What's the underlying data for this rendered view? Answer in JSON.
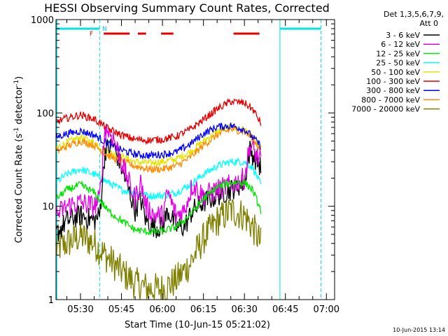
{
  "chart_data": {
    "type": "line",
    "title": "HESSI Observing Summary Count Rates, Corrected",
    "xlabel": "Start Time (10-Jun-15 05:21:02)",
    "ylabel_main": "Corrected Count Rate (s",
    "ylabel_sup": "-1",
    "ylabel_mid": " detector",
    "ylabel_sup2": "-1",
    "ylabel_end": ")",
    "yscale": "log",
    "xlim": [
      "05:21:02",
      "07:03:00"
    ],
    "ylim": [
      1,
      1000
    ],
    "x_ticks": [
      "05:30",
      "05:45",
      "06:00",
      "06:15",
      "06:30",
      "06:45",
      "07:00"
    ],
    "y_ticks": [
      "1",
      "10",
      "100",
      "1000"
    ],
    "legend": {
      "header_1": "Det 1,3,5,6,7,9,",
      "header_2": "Att 0",
      "entries": [
        {
          "label": "3 - 6 keV",
          "color": "#000000"
        },
        {
          "label": "6 - 12 keV",
          "color": "#e400e4"
        },
        {
          "label": "12 - 25 keV",
          "color": "#00e400"
        },
        {
          "label": "25 - 50 keV",
          "color": "#00ffff"
        },
        {
          "label": "50 - 100 keV",
          "color": "#e4e400"
        },
        {
          "label": "100 - 300 keV",
          "color": "#e40000"
        },
        {
          "label": "300 - 800 keV",
          "color": "#0000ff"
        },
        {
          "label": "800 - 7000 keV",
          "color": "#ff8c00"
        },
        {
          "label": "7000 - 20000 keV",
          "color": "#808000"
        }
      ]
    },
    "flags": {
      "night_label": "N",
      "flare_label": "F",
      "night_intervals": [
        [
          "05:21:02",
          "05:37:00"
        ],
        [
          "06:43:00",
          "06:58:00"
        ]
      ],
      "saa_boundaries": [
        "05:37:00",
        "06:43:00",
        "06:58:00"
      ],
      "flare_intervals": [
        [
          "05:38:30",
          "05:48:00"
        ],
        [
          "05:51:00",
          "05:54:00"
        ],
        [
          "05:59:30",
          "06:04:00"
        ],
        [
          "06:26:00",
          "06:35:30"
        ]
      ]
    },
    "series": [
      {
        "name": "100 - 300 keV",
        "color": "#e40000",
        "x": [
          "05:21",
          "05:25",
          "05:30",
          "05:35",
          "05:40",
          "05:45",
          "05:50",
          "05:55",
          "06:00",
          "06:05",
          "06:10",
          "06:15",
          "06:20",
          "06:25",
          "06:30",
          "06:33",
          "06:36"
        ],
        "values": [
          80,
          88,
          95,
          86,
          68,
          58,
          52,
          51,
          52,
          56,
          66,
          85,
          110,
          133,
          128,
          110,
          78
        ]
      },
      {
        "name": "300 - 800 keV",
        "color": "#0000ff",
        "x": [
          "05:21",
          "05:25",
          "05:30",
          "05:35",
          "05:40",
          "05:45",
          "05:50",
          "05:55",
          "06:00",
          "06:05",
          "06:10",
          "06:15",
          "06:20",
          "06:25",
          "06:30",
          "06:33",
          "06:36"
        ],
        "values": [
          55,
          60,
          64,
          58,
          47,
          40,
          36,
          35,
          36,
          38,
          46,
          60,
          71,
          73,
          67,
          55,
          44
        ]
      },
      {
        "name": "50 - 100 keV",
        "color": "#e4e400",
        "x": [
          "05:21",
          "05:25",
          "05:30",
          "05:35",
          "05:40",
          "05:45",
          "05:50",
          "05:55",
          "06:00",
          "06:05",
          "06:10",
          "06:15",
          "06:20",
          "06:25",
          "06:30",
          "06:33",
          "06:36"
        ],
        "values": [
          42,
          48,
          55,
          48,
          38,
          34,
          30,
          29,
          30,
          32,
          38,
          50,
          63,
          70,
          66,
          55,
          42
        ]
      },
      {
        "name": "800 - 7000 keV",
        "color": "#ff8c00",
        "x": [
          "05:21",
          "05:25",
          "05:30",
          "05:35",
          "05:40",
          "05:45",
          "05:50",
          "05:55",
          "06:00",
          "06:05",
          "06:10",
          "06:15",
          "06:20",
          "06:25",
          "06:30",
          "06:33",
          "06:36"
        ],
        "values": [
          38,
          44,
          50,
          45,
          35,
          30,
          27,
          25,
          25,
          27,
          33,
          45,
          58,
          67,
          63,
          53,
          40
        ]
      },
      {
        "name": "25 - 50 keV",
        "color": "#00ffff",
        "x": [
          "05:21",
          "05:25",
          "05:30",
          "05:35",
          "05:40",
          "05:45",
          "05:50",
          "05:55",
          "06:00",
          "06:05",
          "06:10",
          "06:15",
          "06:20",
          "06:25",
          "06:30",
          "06:33",
          "06:36"
        ],
        "values": [
          18,
          22,
          25,
          22,
          18,
          15,
          14,
          13,
          13,
          14,
          17,
          22,
          27,
          30,
          30,
          26,
          17
        ]
      },
      {
        "name": "12 - 25 keV",
        "color": "#00e400",
        "x": [
          "05:21",
          "05:25",
          "05:30",
          "05:35",
          "05:40",
          "05:45",
          "05:50",
          "05:55",
          "06:00",
          "06:05",
          "06:10",
          "06:15",
          "06:20",
          "06:25",
          "06:30",
          "06:33",
          "06:36"
        ],
        "values": [
          12,
          15,
          17,
          14,
          9,
          7,
          5.6,
          5.3,
          5.4,
          6,
          8,
          12,
          16,
          18,
          18,
          15,
          9
        ]
      },
      {
        "name": "6 - 12 keV",
        "color": "#e400e4",
        "x": [
          "05:21",
          "05:25",
          "05:30",
          "05:35",
          "05:37",
          "05:39",
          "05:42",
          "05:45",
          "05:48",
          "05:50",
          "05:52",
          "05:54",
          "05:57",
          "06:00",
          "06:02",
          "06:05",
          "06:08",
          "06:11",
          "06:15",
          "06:20",
          "06:25",
          "06:30",
          "06:32",
          "06:36"
        ],
        "values": [
          8,
          10,
          11,
          10,
          12,
          70,
          55,
          30,
          17,
          12,
          18,
          10,
          8,
          8,
          14,
          8,
          9,
          17,
          13,
          15,
          17,
          20,
          45,
          30
        ]
      },
      {
        "name": "3 - 6 keV",
        "color": "#000000",
        "x": [
          "05:21",
          "05:25",
          "05:30",
          "05:35",
          "05:37",
          "05:39",
          "05:42",
          "05:45",
          "05:48",
          "05:50",
          "05:52",
          "05:54",
          "05:57",
          "06:00",
          "06:02",
          "06:05",
          "06:08",
          "06:11",
          "06:15",
          "06:20",
          "06:25",
          "06:30",
          "06:32",
          "06:36"
        ],
        "values": [
          5,
          7,
          8,
          7,
          8,
          40,
          45,
          26,
          14,
          9,
          12,
          7,
          6,
          6,
          9,
          6,
          6,
          9,
          11,
          13,
          15,
          18,
          40,
          26
        ]
      },
      {
        "name": "7000 - 20000 keV",
        "color": "#808000",
        "x": [
          "05:21",
          "05:25",
          "05:30",
          "05:35",
          "05:40",
          "05:45",
          "05:50",
          "05:55",
          "06:00",
          "06:05",
          "06:10",
          "06:15",
          "06:20",
          "06:25",
          "06:30",
          "06:33",
          "06:36"
        ],
        "values": [
          3.5,
          4,
          4.8,
          4,
          2.8,
          2,
          1.5,
          1.3,
          1.3,
          1.6,
          2.4,
          4.5,
          7,
          9,
          8,
          6,
          4
        ]
      }
    ]
  },
  "footer": {
    "date_stamp": "10-Jun-2015 13:14"
  }
}
